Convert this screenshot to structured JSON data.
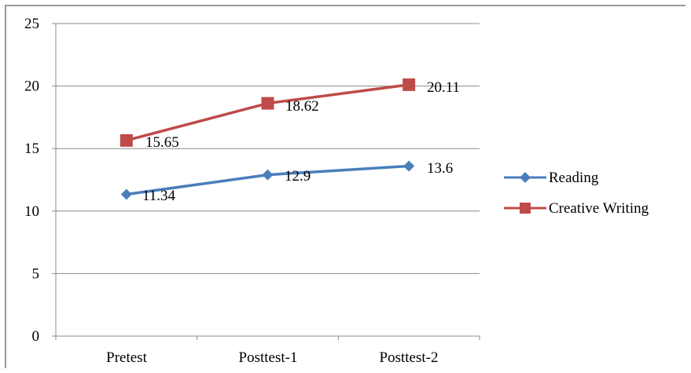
{
  "chart_data": {
    "type": "line",
    "categories": [
      "Pretest",
      "Posttest-1",
      "Posttest-2"
    ],
    "yticks": [
      "0",
      "5",
      "10",
      "15",
      "20",
      "25"
    ],
    "ylim": [
      0,
      25
    ],
    "grid": true,
    "legend_position": "right",
    "series": [
      {
        "name": "Reading",
        "values": [
          11.34,
          12.9,
          13.6
        ],
        "labels": [
          "11.34",
          "12.9",
          "13.6"
        ],
        "color": "#4a7ebb",
        "marker": "diamond"
      },
      {
        "name": "Creative Writing",
        "values": [
          15.65,
          18.62,
          20.11
        ],
        "labels": [
          "15.65",
          "18.62",
          "20.11"
        ],
        "color": "#be4b48",
        "marker": "square"
      }
    ]
  }
}
